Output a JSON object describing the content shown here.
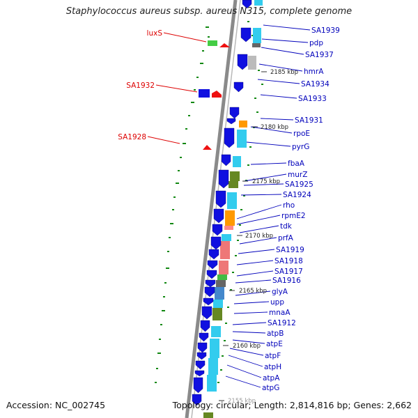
{
  "header": {
    "title": "Staphylococcus aureus subsp. aureus N315, complete genome"
  },
  "footer": {
    "accession": "Accession: NC_002745",
    "summary": "Topology: circular; Length: 2,814,816 bp; Genes: 2,662"
  },
  "colors": {
    "plus_strand_gene": "#1010e0",
    "red_label": "#dd0000",
    "blue_label": "#0000bb",
    "backbone": "#888888",
    "dots": "#118811"
  },
  "scale_labels": [
    "2185 kbp",
    "2180 kbp",
    "2175 kbp",
    "2170 kbp",
    "2165 kbp",
    "2160 kbp",
    "2155 kbp"
  ],
  "red_gene_labels": [
    "luxS",
    "SA1932",
    "SA1928"
  ],
  "blue_gene_labels": [
    "SA1939",
    "pdp",
    "SA1937",
    "hmrA",
    "SA1934",
    "SA1933",
    "SA1931",
    "rpoE",
    "pyrG",
    "fbaA",
    "murZ",
    "SA1925",
    "SA1924",
    "rho",
    "rpmE2",
    "tdk",
    "prfA",
    "SA1919",
    "SA1918",
    "SA1917",
    "SA1916",
    "glyA",
    "upp",
    "mnaA",
    "SA1912",
    "atpB",
    "atpE",
    "atpF",
    "atpH",
    "atpA",
    "atpG"
  ]
}
